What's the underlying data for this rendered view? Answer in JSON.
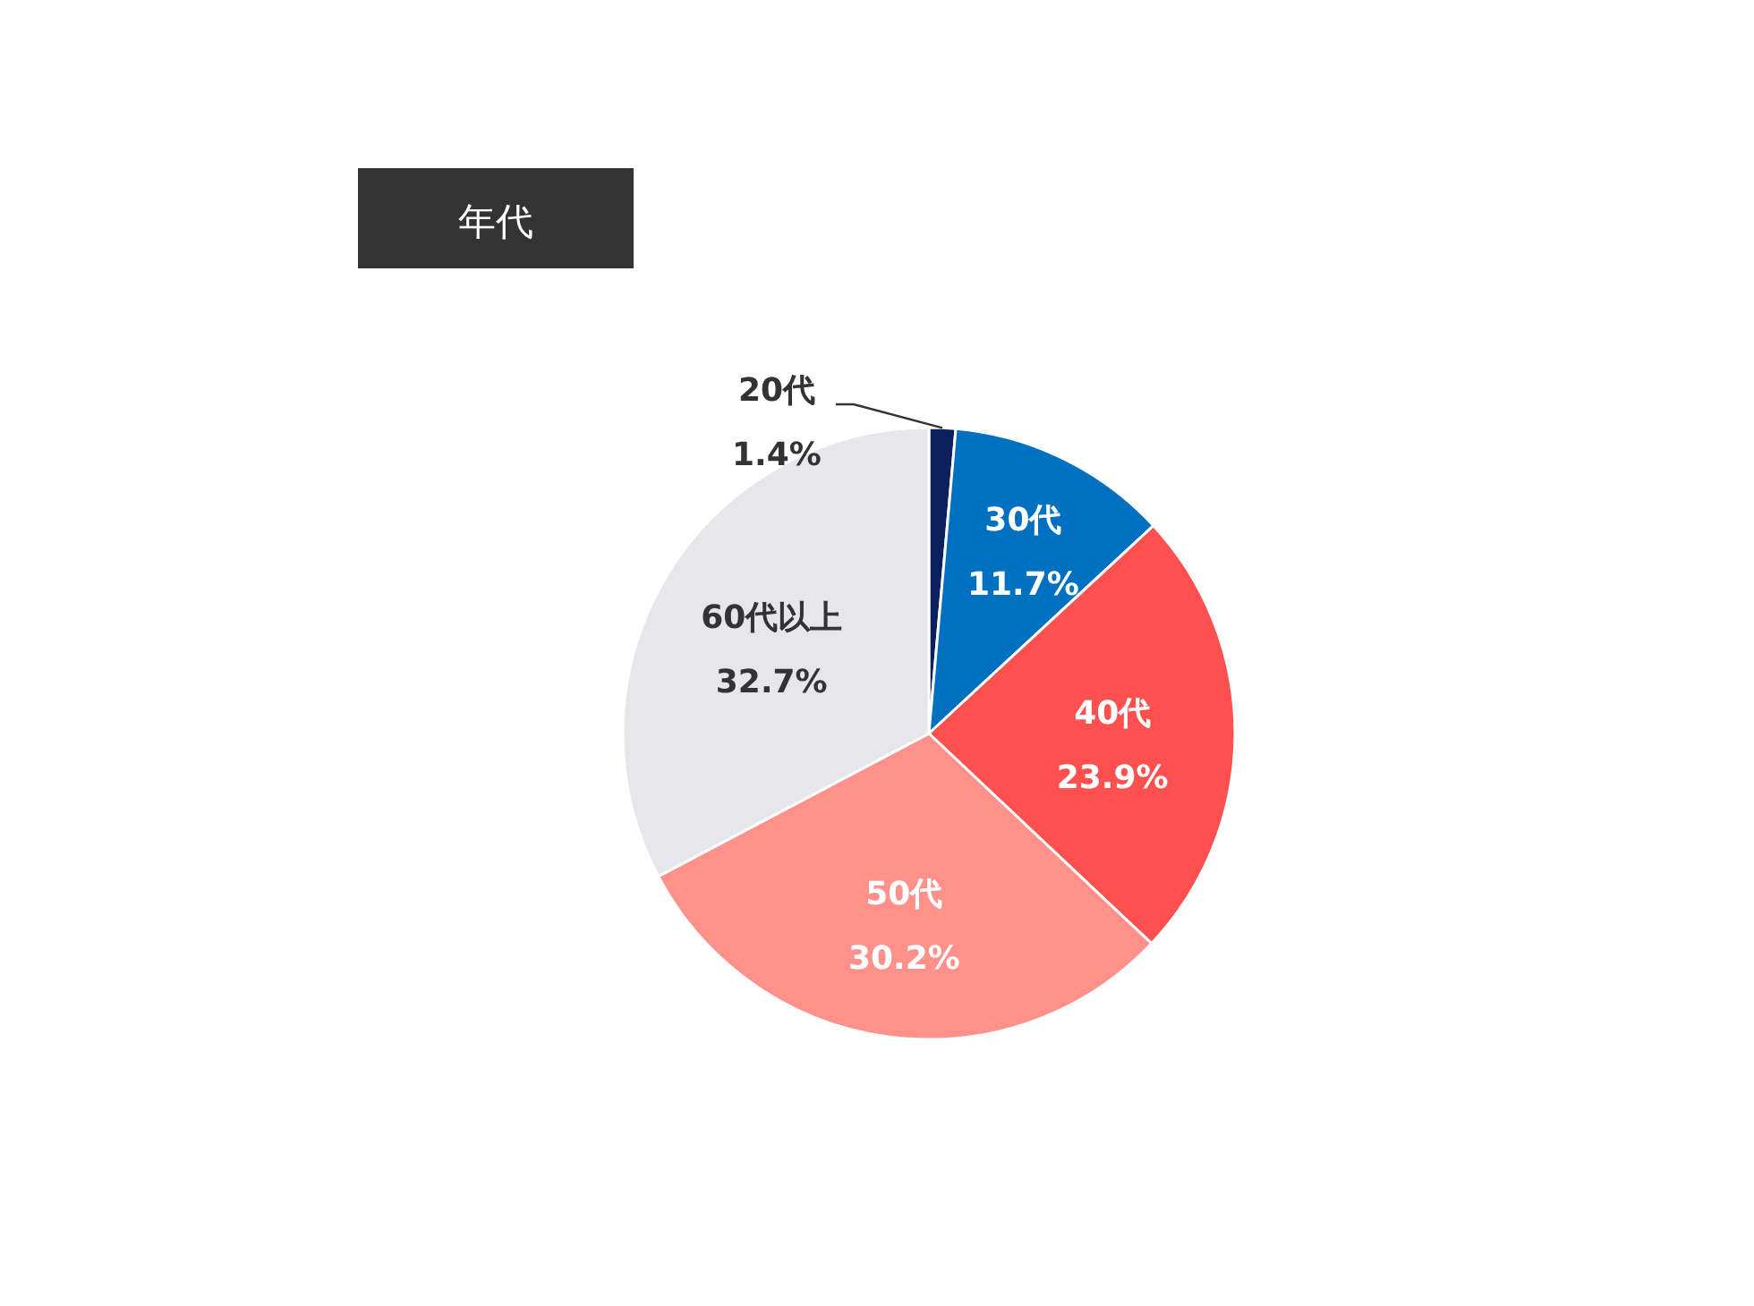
{
  "chart_data": {
    "type": "pie",
    "title": "年代",
    "categories": [
      "20代",
      "30代",
      "40代",
      "50代",
      "60代以上"
    ],
    "values": [
      1.4,
      11.7,
      23.9,
      30.2,
      32.7
    ],
    "colors": [
      "#0d1f5c",
      "#0070c0",
      "#ff5050",
      "#ff918a",
      "#e6e6eb"
    ],
    "value_labels": [
      "1.4%",
      "11.7%",
      "23.9%",
      "30.2%",
      "32.7%"
    ]
  }
}
